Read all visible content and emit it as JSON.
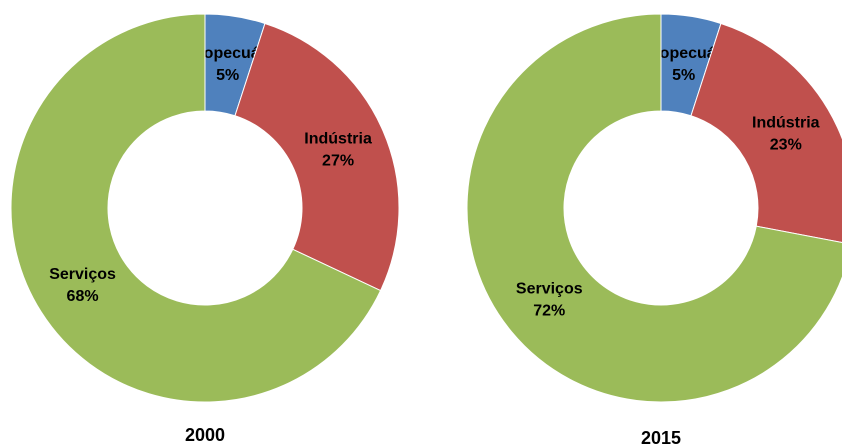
{
  "chart_data": [
    {
      "type": "donut",
      "title": "2000",
      "categories": [
        "Agropecuária",
        "Indústria",
        "Serviços"
      ],
      "values": [
        5,
        27,
        68
      ],
      "value_labels": [
        "5%",
        "27%",
        "68%"
      ],
      "colors": [
        "#4f81bd",
        "#c0504d",
        "#9bbb59"
      ]
    },
    {
      "type": "donut",
      "title": "2015",
      "categories": [
        "Agropecuária",
        "Indústria",
        "Serviços"
      ],
      "values": [
        5,
        23,
        72
      ],
      "value_labels": [
        "5%",
        "23%",
        "72%"
      ],
      "colors": [
        "#4f81bd",
        "#c0504d",
        "#9bbb59"
      ]
    }
  ]
}
